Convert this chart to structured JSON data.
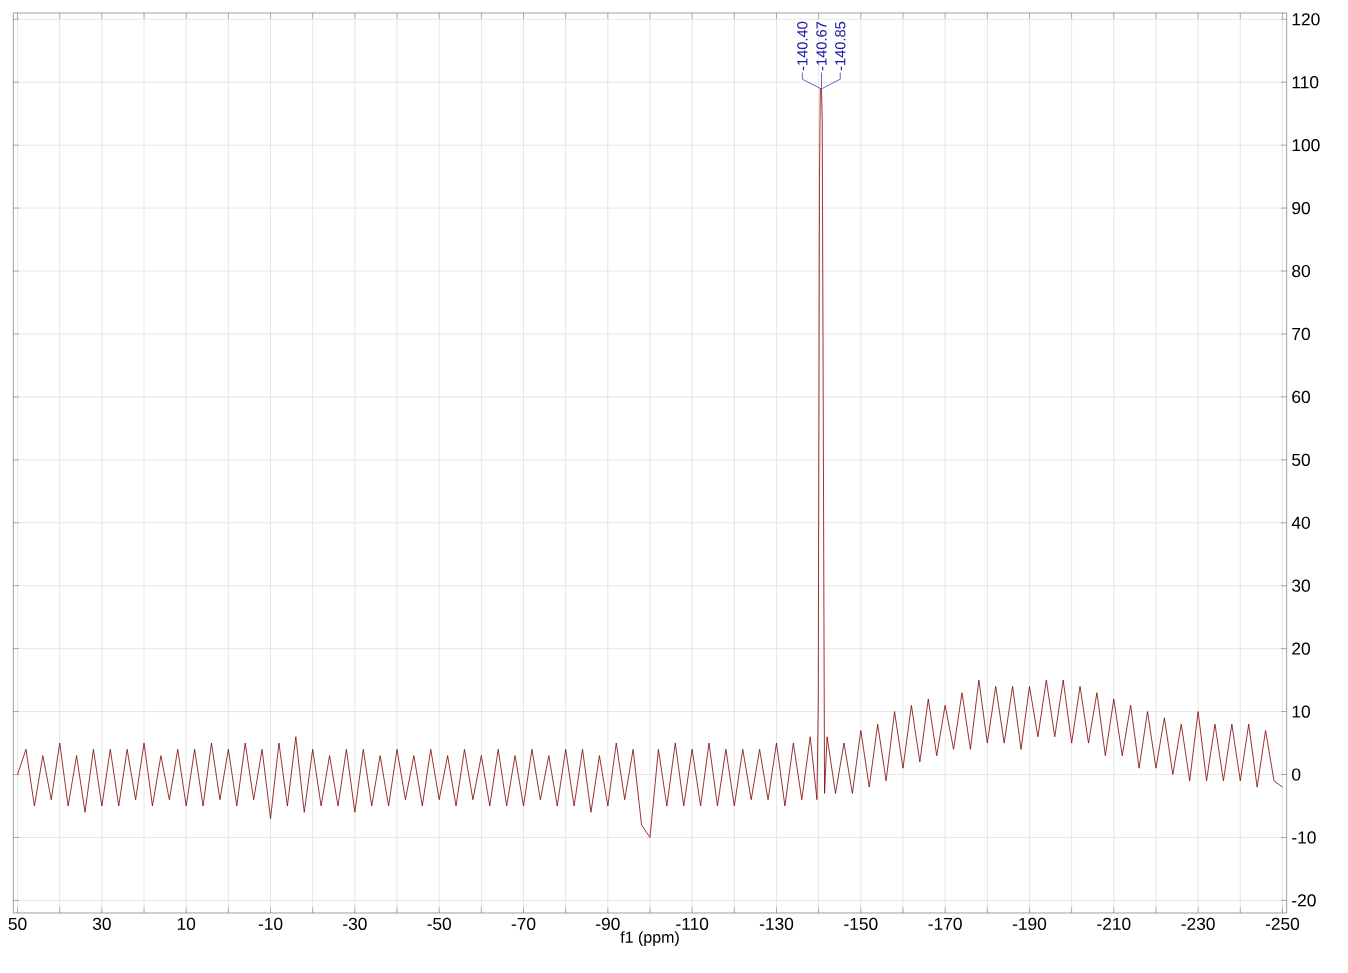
{
  "chart_data": {
    "type": "line",
    "xlabel": "f1 (ppm)",
    "xlim": [
      51,
      -251
    ],
    "xticks": [
      50,
      {
        "value": 40,
        "label": null
      },
      30,
      {
        "value": 20,
        "label": null
      },
      10,
      {
        "value": 0,
        "label": null
      },
      -10,
      {
        "value": -20,
        "label": null
      },
      -30,
      {
        "value": -40,
        "label": null
      },
      -50,
      {
        "value": -60,
        "label": null
      },
      -70,
      {
        "value": -80,
        "label": null
      },
      -90,
      {
        "value": -100,
        "label": null
      },
      -110,
      {
        "value": -120,
        "label": null
      },
      -130,
      {
        "value": -140,
        "label": null
      },
      -150,
      {
        "value": -160,
        "label": null
      },
      -170,
      {
        "value": -180,
        "label": null
      },
      -190,
      {
        "value": -200,
        "label": null
      },
      -210,
      {
        "value": -220,
        "label": null
      },
      -230,
      {
        "value": -240,
        "label": null
      },
      -250
    ],
    "ylim": [
      -22,
      121
    ],
    "yticks": [
      -20,
      -10,
      0,
      10,
      20,
      30,
      40,
      50,
      60,
      70,
      80,
      90,
      100,
      110,
      120
    ],
    "grid": true,
    "marker": "none",
    "line_style": "solid",
    "annotations": [
      {
        "text": "-140.40",
        "x": -140.4,
        "y": 109
      },
      {
        "text": "-140.67",
        "x": -140.67,
        "y": 109
      },
      {
        "text": "-140.85",
        "x": -140.85,
        "y": 109
      }
    ],
    "series": [
      {
        "color": "#800000",
        "x": [
          50,
          48,
          46,
          44,
          42,
          40,
          38,
          36,
          34,
          32,
          30,
          28,
          26,
          24,
          22,
          20,
          18,
          16,
          14,
          12,
          10,
          8,
          6,
          4,
          2,
          0,
          -2,
          -4,
          -6,
          -8,
          -10,
          -12,
          -14,
          -16,
          -18,
          -20,
          -22,
          -24,
          -26,
          -28,
          -30,
          -32,
          -34,
          -36,
          -38,
          -40,
          -42,
          -44,
          -46,
          -48,
          -50,
          -52,
          -54,
          -56,
          -58,
          -60,
          -62,
          -64,
          -66,
          -68,
          -70,
          -72,
          -74,
          -76,
          -78,
          -80,
          -82,
          -84,
          -86,
          -88,
          -90,
          -92,
          -94,
          -96,
          -98,
          -100,
          -102,
          -104,
          -106,
          -108,
          -110,
          -112,
          -114,
          -116,
          -118,
          -120,
          -122,
          -124,
          -126,
          -128,
          -130,
          -132,
          -134,
          -136,
          -138,
          -139.6,
          -139.9,
          -140.2,
          -140.4,
          -140.67,
          -140.85,
          -141.1,
          -141.4,
          -142,
          -144,
          -146,
          -148,
          -150,
          -152,
          -154,
          -156,
          -158,
          -160,
          -162,
          -164,
          -166,
          -168,
          -170,
          -172,
          -174,
          -176,
          -178,
          -180,
          -182,
          -184,
          -186,
          -188,
          -190,
          -192,
          -194,
          -196,
          -198,
          -200,
          -202,
          -204,
          -206,
          -208,
          -210,
          -212,
          -214,
          -216,
          -218,
          -220,
          -222,
          -224,
          -226,
          -228,
          -230,
          -232,
          -234,
          -236,
          -238,
          -240,
          -242,
          -244,
          -246,
          -248,
          -250
        ],
        "values": [
          0,
          4,
          -5,
          3,
          -4,
          5,
          -5,
          3,
          -6,
          4,
          -5,
          4,
          -5,
          4,
          -4,
          5,
          -5,
          3,
          -4,
          4,
          -5,
          4,
          -5,
          5,
          -4,
          4,
          -5,
          5,
          -4,
          4,
          -7,
          5,
          -5,
          6,
          -6,
          4,
          -5,
          3,
          -5,
          4,
          -6,
          4,
          -5,
          3,
          -5,
          4,
          -4,
          3,
          -5,
          4,
          -4,
          3,
          -5,
          4,
          -4,
          3,
          -5,
          4,
          -5,
          3,
          -5,
          4,
          -4,
          3,
          -5,
          4,
          -5,
          4,
          -6,
          3,
          -5,
          5,
          -4,
          4,
          -8,
          -10,
          4,
          -5,
          5,
          -5,
          4,
          -5,
          5,
          -5,
          4,
          -5,
          4,
          -4,
          4,
          -4,
          5,
          -5,
          5,
          -4,
          6,
          -4,
          11,
          95,
          109,
          109,
          104,
          56,
          -3,
          6,
          -3,
          5,
          -3,
          7,
          -2,
          8,
          -1,
          10,
          1,
          11,
          2,
          12,
          3,
          11,
          4,
          13,
          4,
          15,
          5,
          14,
          5,
          14,
          4,
          14,
          6,
          15,
          6,
          15,
          5,
          14,
          5,
          13,
          3,
          12,
          3,
          11,
          1,
          10,
          1,
          9,
          0,
          8,
          -1,
          10,
          -1,
          8,
          -1,
          8,
          -1,
          8,
          -2,
          7,
          -1,
          -2
        ]
      }
    ]
  }
}
